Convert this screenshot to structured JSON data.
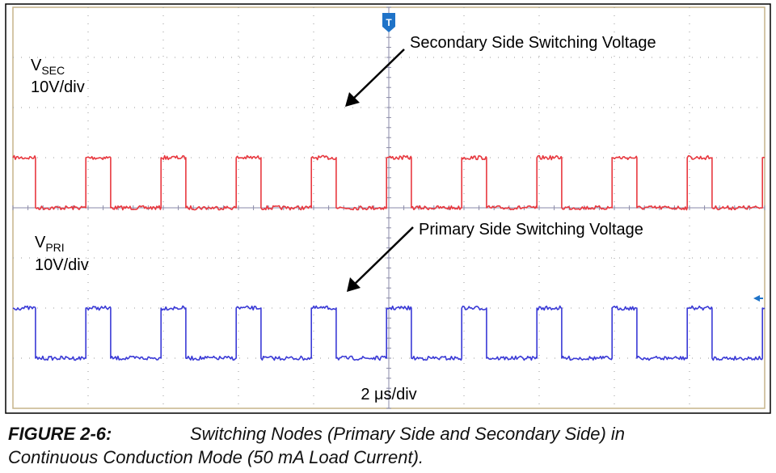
{
  "chart_data": {
    "type": "line",
    "x_scale": "2 μs/div",
    "series": [
      {
        "name": "VSEC",
        "label_main": "V",
        "label_sub": "SEC",
        "scale": "10V/div",
        "color": "#e8383f",
        "annotation": "Secondary Side Switching Voltage",
        "transitions_div": [
          0.3,
          0.97,
          1.3,
          1.97,
          2.3,
          2.97,
          3.3,
          3.97,
          4.3,
          4.97,
          5.3,
          5.97,
          6.3,
          6.97,
          7.3,
          7.97,
          8.3,
          8.97,
          9.3,
          9.97
        ],
        "high_div": 5.0,
        "low_div": 4.0,
        "start_state": "high"
      },
      {
        "name": "VPRI",
        "label_main": "V",
        "label_sub": "PRI",
        "scale": "10V/div",
        "color": "#3a3ad6",
        "annotation": "Primary Side Switching Voltage",
        "transitions_div": [
          0.3,
          0.97,
          1.3,
          1.97,
          2.3,
          2.97,
          3.3,
          3.97,
          4.3,
          4.97,
          5.3,
          5.97,
          6.3,
          6.97,
          7.3,
          7.97,
          8.3,
          8.97,
          9.3,
          9.97
        ],
        "high_div": 2.0,
        "low_div": 1.0,
        "start_state": "high"
      }
    ],
    "trigger_marker": "T",
    "grid": true,
    "divisions": {
      "x": 10,
      "y": 8
    }
  },
  "caption": {
    "label": "FIGURE 2-6:",
    "text_line1": "Switching Nodes (Primary Side and Secondary Side) in",
    "text_line2": "Continuous Conduction Mode (50 mA Load Current)."
  }
}
